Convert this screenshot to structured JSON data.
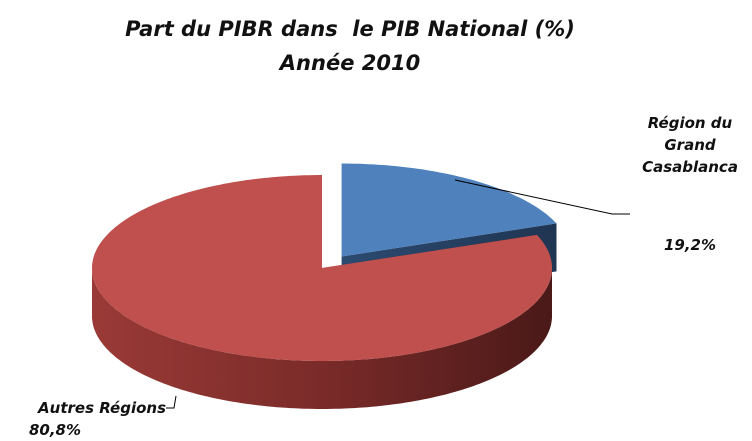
{
  "chart_data": {
    "type": "pie3d",
    "title": "Part du PIBR dans  le PIB National (%)",
    "subtitle": "Année 2010",
    "categories": [
      "Région du Grand Casablanca",
      "Autres Régions"
    ],
    "values": [
      19.2,
      80.8
    ],
    "value_labels": [
      "19,2%",
      "80,8%"
    ],
    "colors": [
      "#4f81bd",
      "#c0504d"
    ]
  }
}
